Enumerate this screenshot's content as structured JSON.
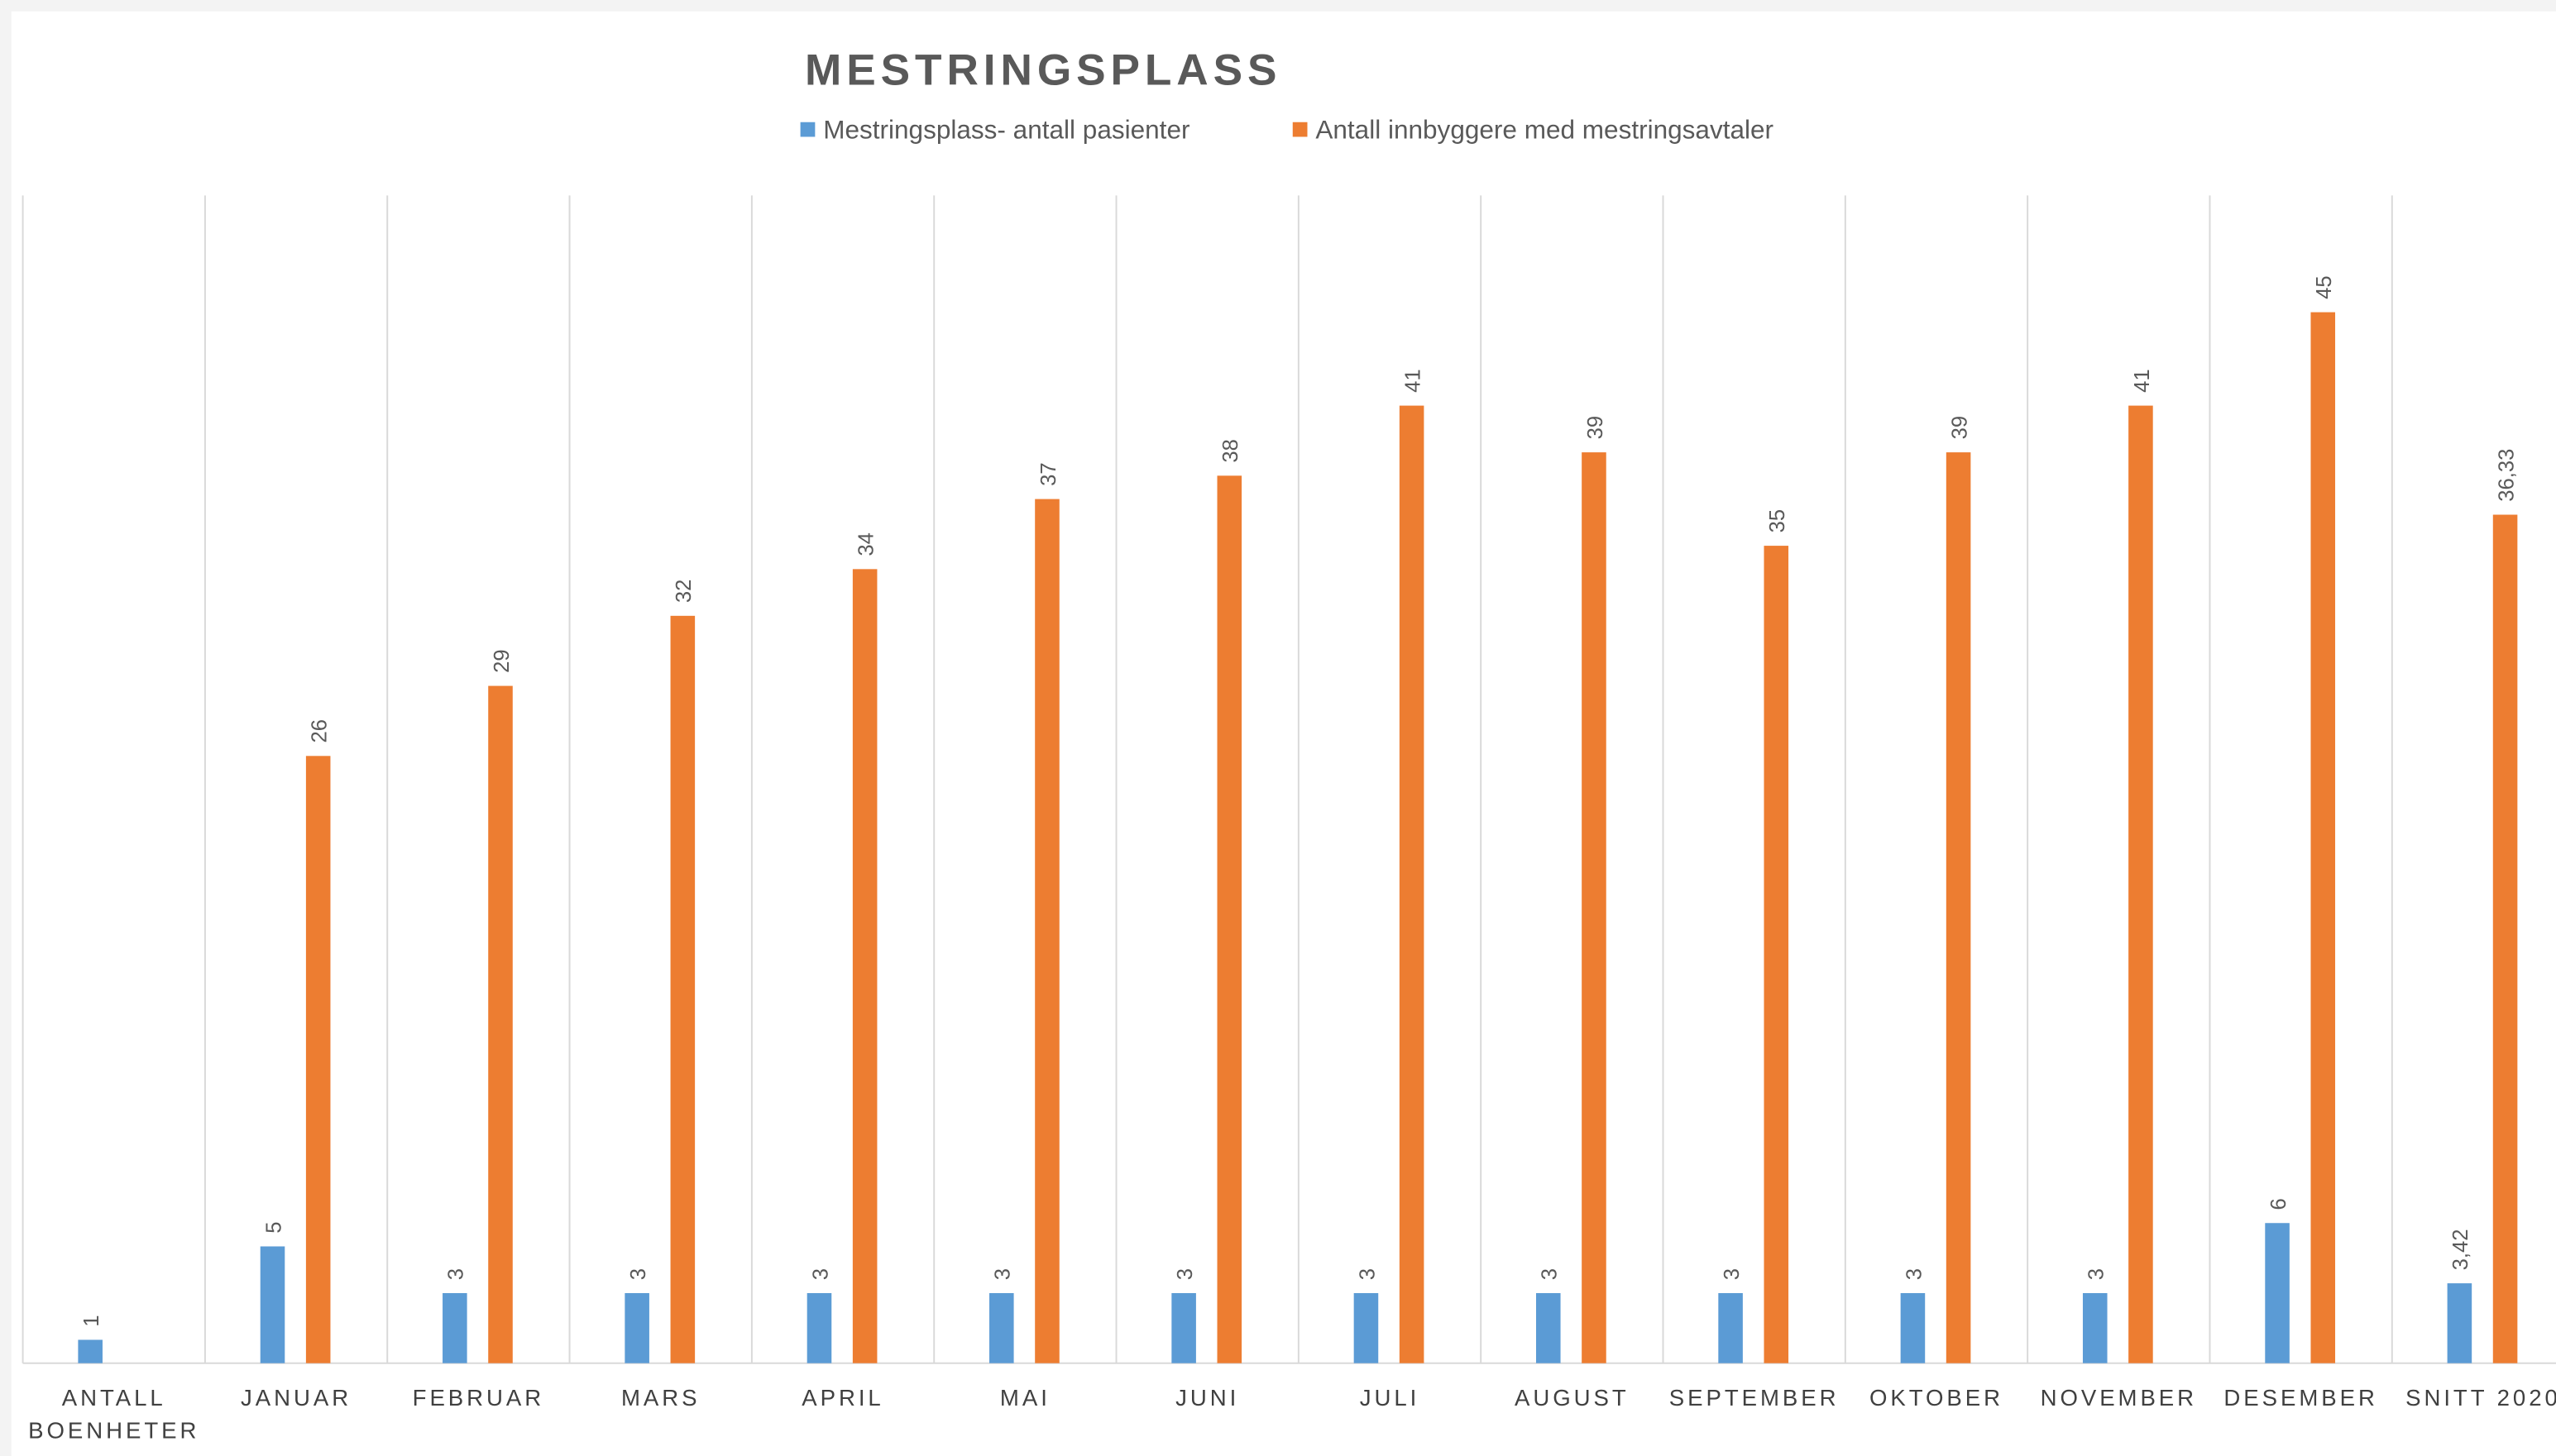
{
  "chart_data": {
    "type": "bar",
    "title": "MESTRINGSPLASS",
    "categories": [
      "ANTALL BOENHETER",
      "JANUAR",
      "FEBRUAR",
      "MARS",
      "APRIL",
      "MAI",
      "JUNI",
      "JULI",
      "AUGUST",
      "SEPTEMBER",
      "OKTOBER",
      "NOVEMBER",
      "DESEMBER",
      "SNITT 2020"
    ],
    "series": [
      {
        "name": "Mestringsplass- antall pasienter",
        "color": "#5b9bd5",
        "values": [
          1,
          5,
          3,
          3,
          3,
          3,
          3,
          3,
          3,
          3,
          3,
          3,
          6,
          3.42
        ],
        "value_labels": [
          "1",
          "5",
          "3",
          "3",
          "3",
          "3",
          "3",
          "3",
          "3",
          "3",
          "3",
          "3",
          "6",
          "3,42"
        ]
      },
      {
        "name": "Antall innbyggere med mestringsavtaler",
        "color": "#ed7d31",
        "values": [
          null,
          26,
          29,
          32,
          34,
          37,
          38,
          41,
          39,
          35,
          39,
          41,
          45,
          36.33
        ],
        "value_labels": [
          null,
          "26",
          "29",
          "32",
          "34",
          "37",
          "38",
          "41",
          "39",
          "35",
          "39",
          "41",
          "45",
          "36,33"
        ]
      }
    ],
    "ylim": [
      0,
      50
    ],
    "legend": "top"
  }
}
